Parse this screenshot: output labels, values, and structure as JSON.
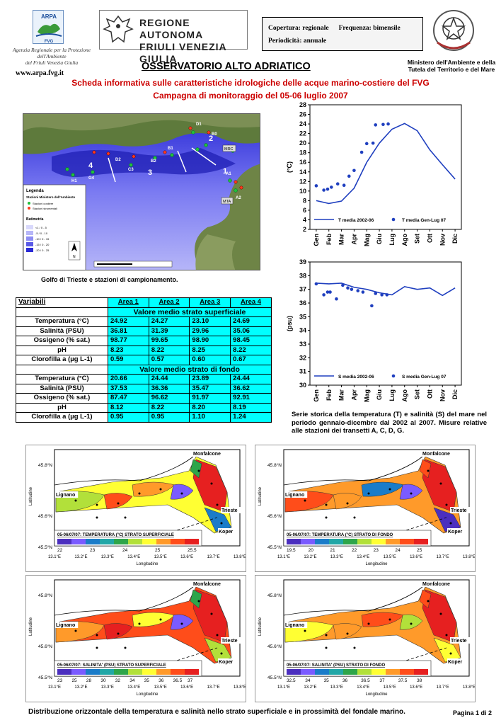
{
  "header": {
    "arpa_logo_text": "ARPA",
    "arpa_logo_sub": "FVG",
    "arpa_caption": [
      "Agenzia Regionale per la Protezione",
      "dell'Ambiente",
      "del Friuli Venezia Giulia"
    ],
    "arpa_url": "www.arpa.fvg.it",
    "regione_lines": [
      "REGIONE AUTONOMA",
      "FRIULI VENEZIA GIULIA"
    ],
    "copertura": "Copertura: regionale",
    "frequenza": "Frequenza: bimensile",
    "periodicita": "Periodicità: annuale",
    "ministero": [
      "Ministero dell'Ambiente e della",
      "Tutela del Territorio e del Mare"
    ],
    "emblem_text": "REPUBBLICA ITALIANA"
  },
  "titles": {
    "main": "OSSERVATORIO ALTO ADRIATICO",
    "line1": "Scheda informativa sulle caratteristiche idrologiche delle acque marino-costiere del FVG",
    "line2": "Campagna di monitoraggio del 05-06 luglio 2007"
  },
  "map": {
    "caption": "Golfo di Trieste e stazioni di campionamento.",
    "legend_title": "Legenda",
    "legend_stations": "Stazioni Ministero dell'Ambiente",
    "legend_s1": "Stazioni costiere",
    "legend_s2": "Stazioni strumentali",
    "legend_bathy": "Batimetria",
    "legend_bathy_levels": [
      "<1 / 0 - 5",
      "-5 / 0 - 10",
      "-10 / 0 - 15",
      "-15 / 0 - 20",
      "-20 / 0 - 25"
    ],
    "area_labels": [
      "1",
      "2",
      "3",
      "4"
    ],
    "stations": [
      "D1",
      "D2",
      "D3",
      "C1",
      "C2",
      "C3",
      "C4",
      "B1",
      "B2",
      "A1",
      "A2",
      "A3",
      "A4",
      "G1",
      "G2",
      "G3",
      "G4",
      "E1",
      "E2",
      "E3",
      "H1",
      "H4",
      "B0",
      "MRC",
      "MTA",
      "S4"
    ]
  },
  "table": {
    "headers": [
      "Variabili",
      "Area 1",
      "Area 2",
      "Area 3",
      "Area 4"
    ],
    "section_surface": "Valore medio strato superficiale",
    "section_bottom": "Valore medio strato di fondo",
    "surface": [
      {
        "label": "Temperatura (°C)",
        "values": [
          "24.92",
          "24.27",
          "23.10",
          "24.69"
        ]
      },
      {
        "label": "Salinità (PSU)",
        "values": [
          "36.81",
          "31.39",
          "29.96",
          "35.06"
        ]
      },
      {
        "label": "Ossigeno (% sat.)",
        "values": [
          "98.77",
          "99.65",
          "98.90",
          "98.45"
        ]
      },
      {
        "label": "pH",
        "values": [
          "8.23",
          "8.22",
          "8.25",
          "8.22"
        ]
      },
      {
        "label": "Clorofilla a (µg L-1)",
        "values": [
          "0.59",
          "0.57",
          "0.60",
          "0.67"
        ]
      }
    ],
    "bottom": [
      {
        "label": "Temperatura (°C)",
        "values": [
          "20.66",
          "24.44",
          "23.89",
          "24.44"
        ]
      },
      {
        "label": "Salinità (PSU)",
        "values": [
          "37.53",
          "36.36",
          "35.47",
          "36.62"
        ]
      },
      {
        "label": "Ossigeno (% sat.)",
        "values": [
          "87.47",
          "96.62",
          "91.97",
          "92.91"
        ]
      },
      {
        "label": "pH",
        "values": [
          "8.12",
          "8.22",
          "8.20",
          "8.19"
        ]
      },
      {
        "label": "Clorofilla a (µg L-1)",
        "values": [
          "0.95",
          "0.95",
          "1.10",
          "1.24"
        ]
      }
    ]
  },
  "series_caption": "Serie storica della temperatura (T) e salinità (S) del mare nel periodo gennaio-dicembre dal 2002 al 2007. Misure relative alle stazioni dei transetti A, C, D, G.",
  "chart_data": [
    {
      "type": "line",
      "title": "",
      "ylabel": "(°C)",
      "ylim": [
        2,
        28
      ],
      "yticks": [
        2,
        4,
        6,
        8,
        10,
        12,
        14,
        16,
        18,
        20,
        22,
        24,
        26,
        28
      ],
      "categories": [
        "Gen",
        "Feb",
        "Mar",
        "Apr",
        "Mag",
        "Giu",
        "Lug",
        "Ago",
        "Set",
        "Ott",
        "Nov",
        "Dic"
      ],
      "series": [
        {
          "name": "T media 2002-06",
          "style": "line",
          "color": "#1f3fbf",
          "x": [
            1,
            2,
            3,
            4,
            5,
            6,
            7,
            8,
            9,
            10,
            11,
            12
          ],
          "values": [
            8.0,
            7.4,
            7.9,
            10.6,
            16.0,
            20.0,
            22.9,
            24.1,
            22.6,
            18.6,
            15.5,
            12.5
          ]
        },
        {
          "name": "T media Gen-Lug 07",
          "style": "points",
          "color": "#1f3fbf",
          "x": [
            1.0,
            1.6,
            1.9,
            2.2,
            2.7,
            3.2,
            3.6,
            4.0,
            4.6,
            5.0,
            5.5,
            5.7,
            6.3,
            6.7
          ],
          "values": [
            11.1,
            10.2,
            10.4,
            10.8,
            11.5,
            11.2,
            13.1,
            14.3,
            18.1,
            19.9,
            20.0,
            23.8,
            23.9,
            24.0
          ]
        }
      ],
      "legend": "bottom-inside"
    },
    {
      "type": "line",
      "title": "",
      "ylabel": "(psu)",
      "ylim": [
        30,
        39
      ],
      "yticks": [
        30,
        31,
        32,
        33,
        34,
        35,
        36,
        37,
        38,
        39
      ],
      "categories": [
        "Gen",
        "Feb",
        "Mar",
        "Apr",
        "Mag",
        "Giu",
        "Lug",
        "Ago",
        "Set",
        "Ott",
        "Nov",
        "Dic"
      ],
      "series": [
        {
          "name": "S media 2002-06",
          "style": "line",
          "color": "#1f3fbf",
          "x": [
            1,
            2,
            3,
            4,
            5,
            6,
            7,
            8,
            9,
            10,
            11,
            12
          ],
          "values": [
            37.45,
            37.4,
            37.45,
            37.15,
            37.0,
            36.75,
            36.6,
            37.2,
            37.0,
            37.1,
            36.55,
            37.1
          ]
        },
        {
          "name": "S media Gen-Lug 07",
          "style": "points",
          "color": "#1f3fbf",
          "x": [
            1.0,
            1.6,
            1.9,
            2.1,
            2.6,
            3.1,
            3.5,
            3.8,
            4.3,
            4.7,
            5.4,
            5.7,
            6.2,
            6.6
          ],
          "values": [
            37.4,
            36.6,
            36.8,
            36.8,
            36.3,
            37.3,
            37.1,
            37.0,
            36.9,
            36.8,
            35.8,
            36.7,
            36.6,
            36.6
          ]
        }
      ],
      "legend": "bottom-inside"
    }
  ],
  "contour_maps": [
    {
      "title": "05-06/07/07: TEMPERATURA (°C) STRATO SUPERFICIALE",
      "scale": [
        "22",
        "23",
        "24",
        "25",
        "25.5"
      ],
      "colors": [
        "#4b2fbf",
        "#7a5bff",
        "#1a7cc9",
        "#22a7a7",
        "#2ea54a",
        "#b2e03a",
        "#ffff33",
        "#ff9a2a",
        "#ff4d1a",
        "#e62020"
      ]
    },
    {
      "title": "05-06/07/07: TEMPERATURA (°C) STRATO DI FONDO",
      "scale": [
        "19.5",
        "20",
        "21",
        "22",
        "23",
        "24",
        "25"
      ],
      "colors": [
        "#4b2fbf",
        "#7a5bff",
        "#1a7cc9",
        "#22a7a7",
        "#2ea54a",
        "#b2e03a",
        "#ffff33",
        "#ff9a2a",
        "#ff4d1a",
        "#e62020"
      ]
    },
    {
      "title": "05-06/07/07: SALINITA' (PSU) STRATO SUPERFICIALE",
      "scale": [
        "23",
        "25",
        "28",
        "30",
        "32",
        "34",
        "35",
        "36",
        "36.5",
        "37"
      ],
      "colors": [
        "#4b2fbf",
        "#7a5bff",
        "#1a7cc9",
        "#22a7a7",
        "#2ea54a",
        "#b2e03a",
        "#ffff33",
        "#ff9a2a",
        "#ff4d1a",
        "#e62020"
      ]
    },
    {
      "title": "05-06/07/07: SALINITA' (PSU) STRATO DI FONDO",
      "scale": [
        "32.5",
        "34",
        "35",
        "36",
        "36.5",
        "37",
        "37.5",
        "38"
      ],
      "colors": [
        "#4b2fbf",
        "#7a5bff",
        "#1a7cc9",
        "#22a7a7",
        "#2ea54a",
        "#b2e03a",
        "#ffff33",
        "#ff9a2a",
        "#ff4d1a",
        "#e62020"
      ]
    }
  ],
  "contour_axes": {
    "lat_labels": [
      "45.8°N",
      "45.7°N",
      "45.6°N",
      "45.5°N"
    ],
    "lon_labels": [
      "13.1°E",
      "13.2°E",
      "13.3°E",
      "13.4°E",
      "13.5°E",
      "13.6°E",
      "13.7°E",
      "13.8°E"
    ],
    "xlabel": "Longitudine",
    "ylabel": "Latitudine",
    "places": [
      "Monfalcone",
      "Lignano",
      "Trieste",
      "Koper"
    ]
  },
  "footer": {
    "caption": "Distribuzione orizzontale della temperatura e salinità nello strato superficiale e in prossimità del fondale marino.",
    "page": "Pagina 1 di 2"
  }
}
